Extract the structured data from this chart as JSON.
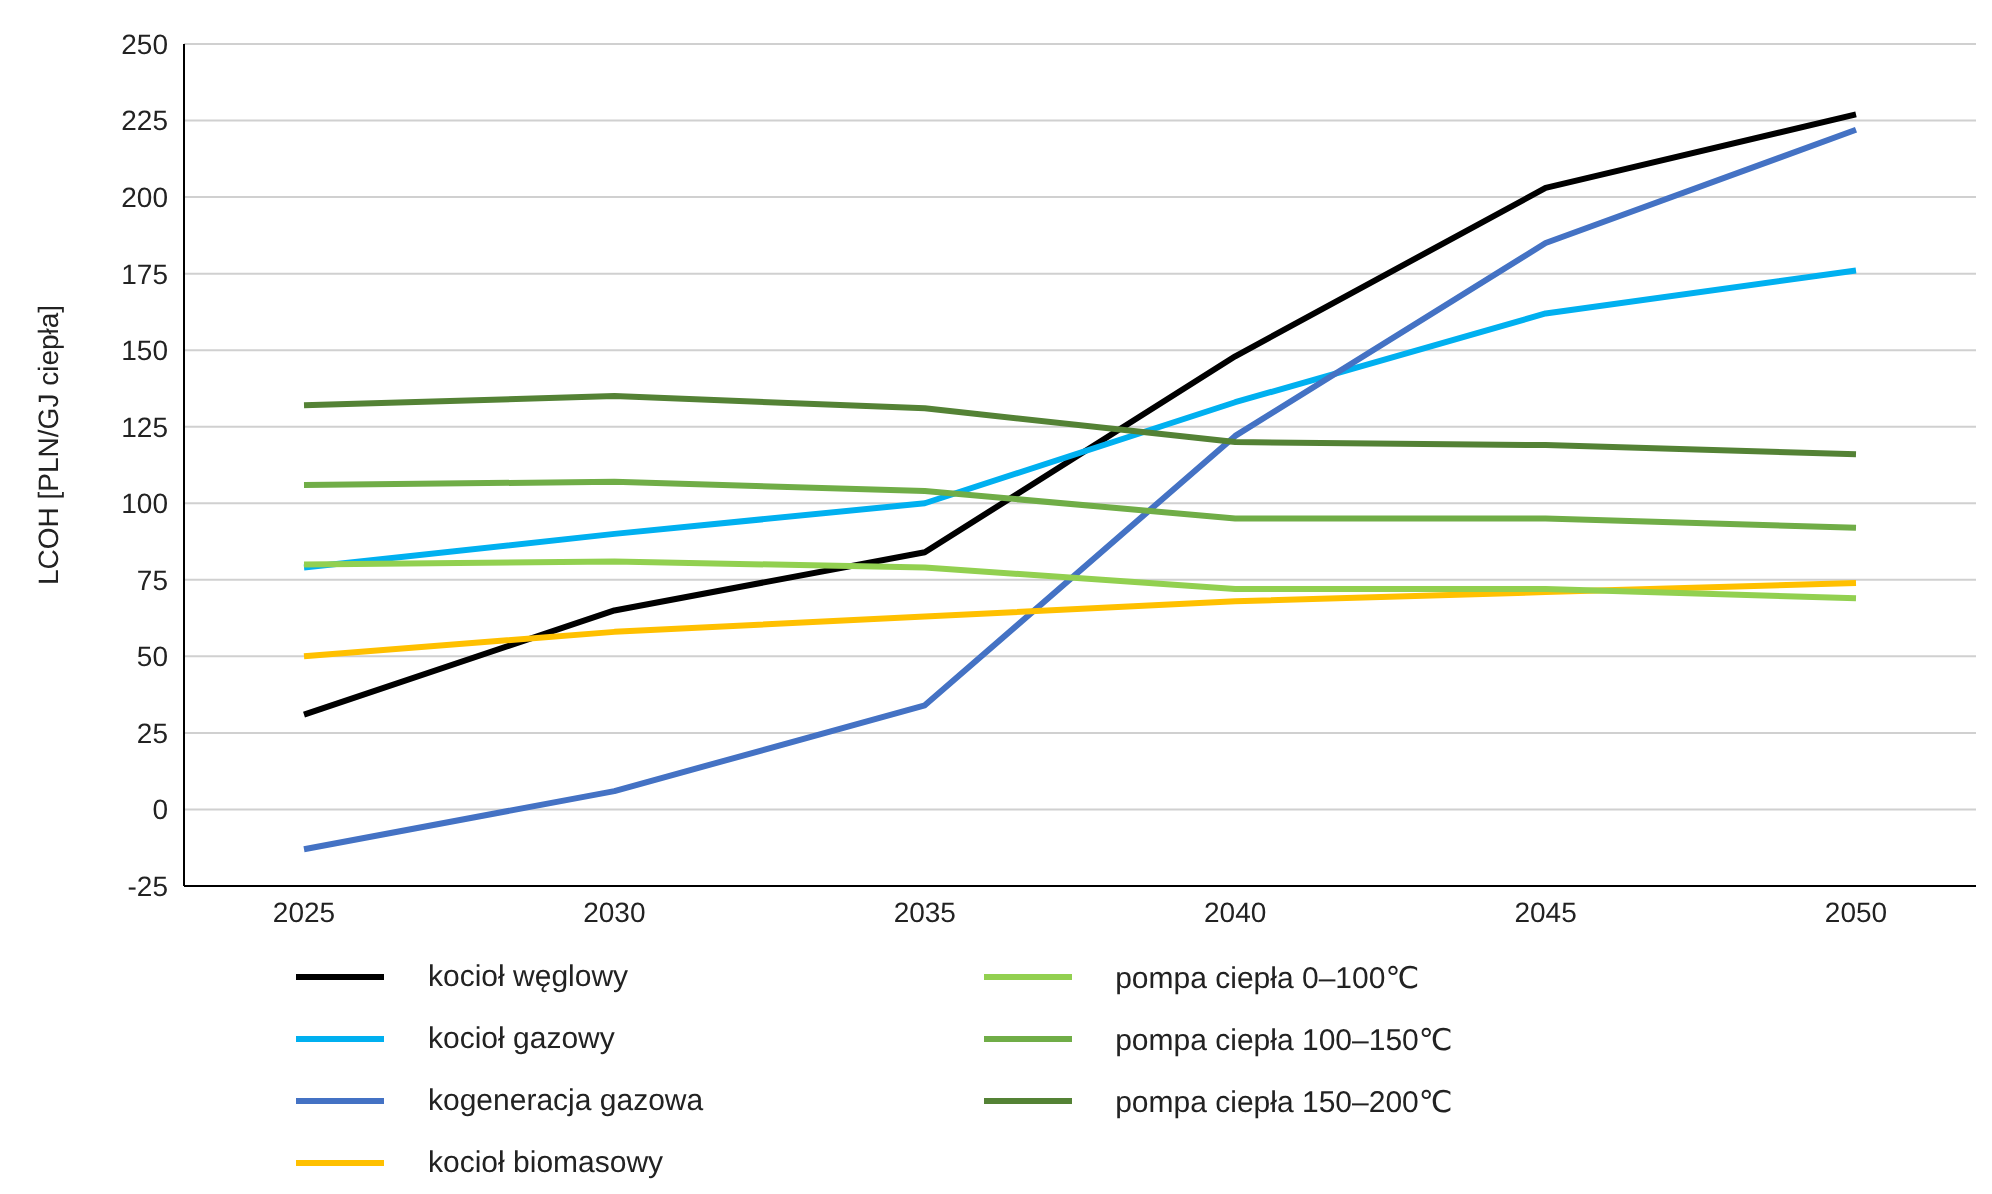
{
  "chart_data": {
    "type": "line",
    "ylabel": "LCOH [PLN/GJ ciepła]",
    "categories": [
      "2025",
      "2030",
      "2035",
      "2040",
      "2045",
      "2050"
    ],
    "ylim": [
      -25,
      250
    ],
    "yticks": [
      -25,
      0,
      25,
      50,
      75,
      100,
      125,
      150,
      175,
      200,
      225,
      250
    ],
    "grid": "y",
    "legend": "bottom",
    "series": [
      {
        "name": "kocioł węglowy",
        "color": "#000000",
        "values": [
          31,
          65,
          84,
          148,
          203,
          227
        ]
      },
      {
        "name": "kocioł gazowy",
        "color": "#00b0f0",
        "values": [
          79,
          90,
          100,
          133,
          162,
          176
        ]
      },
      {
        "name": "kogeneracja gazowa",
        "color": "#4472c4",
        "values": [
          -13,
          6,
          34,
          122,
          185,
          222
        ]
      },
      {
        "name": "kocioł biomasowy",
        "color": "#ffc000",
        "values": [
          50,
          58,
          63,
          68,
          71,
          74
        ]
      },
      {
        "name": "pompa ciepła 0–100℃",
        "color": "#92d050",
        "values": [
          80,
          81,
          79,
          72,
          72,
          69
        ]
      },
      {
        "name": "pompa ciepła 100–150℃",
        "color": "#70ad47",
        "values": [
          106,
          107,
          104,
          95,
          95,
          92
        ]
      },
      {
        "name": "pompa ciepła 150–200℃",
        "color": "#548235",
        "values": [
          132,
          135,
          131,
          120,
          119,
          116
        ]
      }
    ]
  }
}
